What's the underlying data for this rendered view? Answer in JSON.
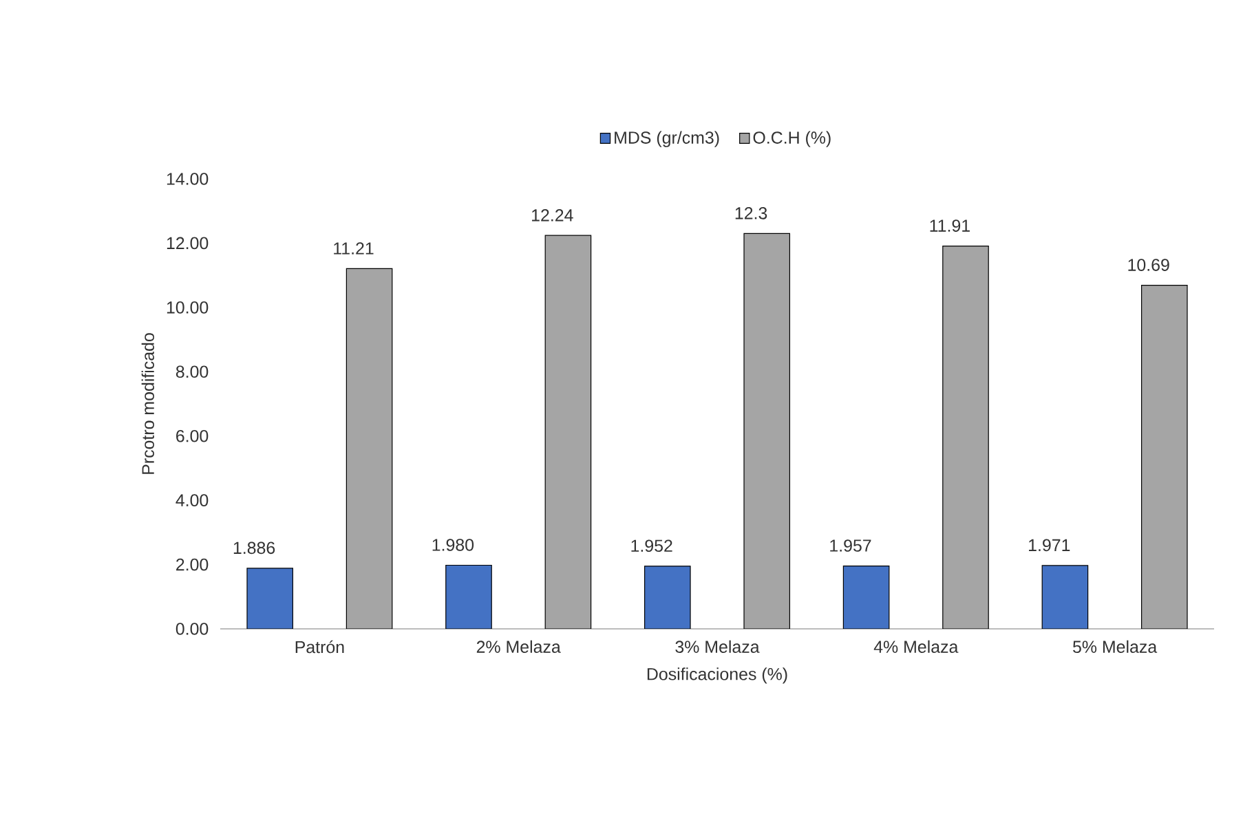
{
  "chart_data": {
    "type": "bar",
    "xlabel": "Dosificaciones (%)",
    "ylabel": "Prcotro modificado",
    "categories": [
      "Patrón",
      "2% Melaza",
      "3% Melaza",
      "4% Melaza",
      "5% Melaza"
    ],
    "series": [
      {
        "name": "MDS (gr/cm3)",
        "color": "#4472c4",
        "values": [
          1.886,
          1.98,
          1.952,
          1.957,
          1.971
        ],
        "value_labels": [
          "1.886",
          "1.980",
          "1.952",
          "1.957",
          "1.971"
        ]
      },
      {
        "name": "O.C.H (%)",
        "color": "#a5a5a5",
        "values": [
          11.21,
          12.24,
          12.3,
          11.91,
          10.69
        ],
        "value_labels": [
          "11.21",
          "12.24",
          "12.3",
          "11.91",
          "10.69"
        ]
      }
    ],
    "ylim": [
      0,
      14
    ],
    "yticks": [
      {
        "value": 0,
        "label": "0.00"
      },
      {
        "value": 2,
        "label": "2.00"
      },
      {
        "value": 4,
        "label": "4.00"
      },
      {
        "value": 6,
        "label": "6.00"
      },
      {
        "value": 8,
        "label": "8.00"
      },
      {
        "value": 10,
        "label": "10.00"
      },
      {
        "value": 12,
        "label": "12.00"
      },
      {
        "value": 14,
        "label": "14.00"
      }
    ],
    "legend": "top"
  }
}
